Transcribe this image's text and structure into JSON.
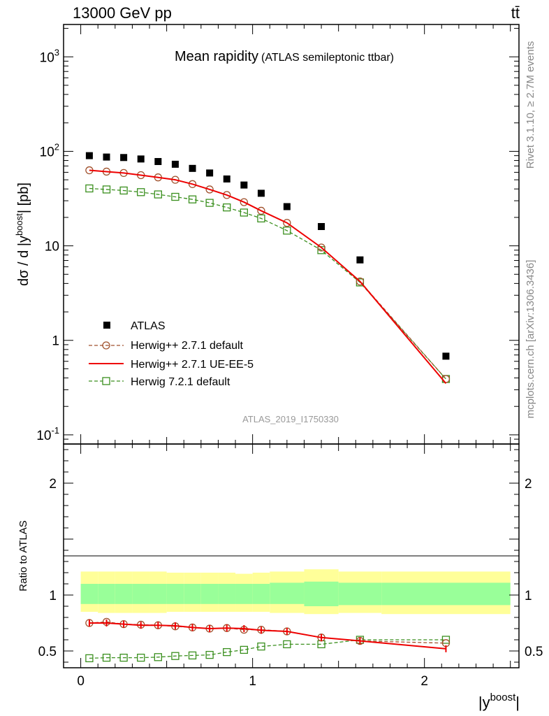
{
  "header": {
    "left": "13000 GeV pp",
    "right": "tt̄"
  },
  "side_labels": {
    "rivet": "Rivet 3.1.10, ≥ 2.7M events",
    "mcplots": "mcplots.cern.ch [arXiv:1306.3436]"
  },
  "chart_data": [
    {
      "type": "scatter",
      "title": "Mean rapidity",
      "subtitle": "(ATLAS semileptonic ttbar)",
      "ylabel": "dσ / d |y^boost| [pb]",
      "xlabel": "",
      "yscale": "log",
      "ylim": [
        0.08,
        2200
      ],
      "xlim": [
        -0.1,
        2.55
      ],
      "y_ticks": [
        "10^{-1}",
        "1",
        "10",
        "10^{2}",
        "10^{3}"
      ],
      "analysis_label": "ATLAS_2019_I1750330",
      "legend_position": "lower-left",
      "x": [
        0.05,
        0.15,
        0.25,
        0.35,
        0.45,
        0.55,
        0.65,
        0.75,
        0.85,
        0.95,
        1.05,
        1.2,
        1.4,
        1.625,
        2.125
      ],
      "series": [
        {
          "name": "ATLAS",
          "style": "black-square",
          "color": "#000000",
          "values": [
            90,
            87,
            86,
            83,
            78,
            73,
            66,
            59,
            51,
            44,
            36,
            26,
            16,
            7.1,
            0.68
          ]
        },
        {
          "name": "Herwig++ 2.7.1 default",
          "style": "open-circle-dashed",
          "color": "#a0522d",
          "values": [
            63,
            61,
            59,
            56,
            53,
            50,
            45,
            39.5,
            34.5,
            29,
            23.5,
            17.5,
            9.6,
            4.2,
            0.39
          ]
        },
        {
          "name": "Herwig++ 2.7.1 UE-EE-5",
          "style": "solid-line",
          "color": "#ee0000",
          "values": [
            63,
            61,
            59,
            56,
            53,
            50,
            45,
            39.5,
            34.5,
            29,
            23.5,
            17.5,
            9.6,
            4.2,
            0.35
          ]
        },
        {
          "name": "Herwig 7.2.1 default",
          "style": "open-square-dashed",
          "color": "#3a8f1e",
          "values": [
            40.5,
            39.5,
            38.5,
            37,
            35,
            33,
            31,
            28.5,
            25.5,
            22.5,
            19.5,
            14.5,
            9,
            4.1,
            0.39
          ]
        }
      ]
    },
    {
      "type": "scatter",
      "title": "",
      "ylabel": "Ratio to ATLAS",
      "xlabel": "|y^boost|",
      "ylim": [
        0.35,
        2.35
      ],
      "xlim": [
        -0.1,
        2.55
      ],
      "y_ticks": [
        "0.5",
        "1",
        "2"
      ],
      "x_ticks": [
        "0",
        "1",
        "2"
      ],
      "x": [
        0.05,
        0.15,
        0.25,
        0.35,
        0.45,
        0.55,
        0.65,
        0.75,
        0.85,
        0.95,
        1.05,
        1.2,
        1.4,
        1.625,
        2.125
      ],
      "bin_edges": [
        0,
        0.1,
        0.2,
        0.3,
        0.4,
        0.5,
        0.6,
        0.7,
        0.8,
        0.9,
        1.0,
        1.1,
        1.3,
        1.5,
        1.75,
        2.5
      ],
      "band_outer_low": [
        0.85,
        0.84,
        0.84,
        0.84,
        0.84,
        0.85,
        0.85,
        0.85,
        0.85,
        0.85,
        0.85,
        0.84,
        0.83,
        0.84,
        0.83
      ],
      "band_outer_high": [
        1.21,
        1.21,
        1.21,
        1.21,
        1.21,
        1.2,
        1.2,
        1.2,
        1.2,
        1.19,
        1.2,
        1.21,
        1.23,
        1.21,
        1.21
      ],
      "band_inner_low": [
        0.92,
        0.92,
        0.92,
        0.92,
        0.92,
        0.92,
        0.92,
        0.92,
        0.92,
        0.92,
        0.92,
        0.92,
        0.9,
        0.91,
        0.91
      ],
      "band_inner_high": [
        1.1,
        1.1,
        1.1,
        1.1,
        1.1,
        1.1,
        1.1,
        1.1,
        1.1,
        1.1,
        1.1,
        1.11,
        1.12,
        1.11,
        1.11
      ],
      "series": [
        {
          "name": "Herwig++ 2.7.1 default",
          "style": "open-circle-dashed",
          "color": "#a0522d",
          "values": [
            0.75,
            0.76,
            0.74,
            0.735,
            0.73,
            0.72,
            0.71,
            0.7,
            0.705,
            0.69,
            0.69,
            0.675,
            0.62,
            0.59,
            0.57
          ]
        },
        {
          "name": "Herwig++ 2.7.1 UE-EE-5",
          "style": "solid-line",
          "color": "#ee0000",
          "values": [
            0.75,
            0.75,
            0.74,
            0.73,
            0.73,
            0.725,
            0.71,
            0.7,
            0.705,
            0.7,
            0.685,
            0.675,
            0.62,
            0.59,
            0.52
          ]
        },
        {
          "name": "Herwig 7.2.1 default",
          "style": "open-square-dashed",
          "color": "#3a8f1e",
          "values": [
            0.435,
            0.44,
            0.44,
            0.44,
            0.445,
            0.455,
            0.46,
            0.465,
            0.49,
            0.51,
            0.54,
            0.56,
            0.56,
            0.6,
            0.6
          ]
        }
      ]
    }
  ]
}
